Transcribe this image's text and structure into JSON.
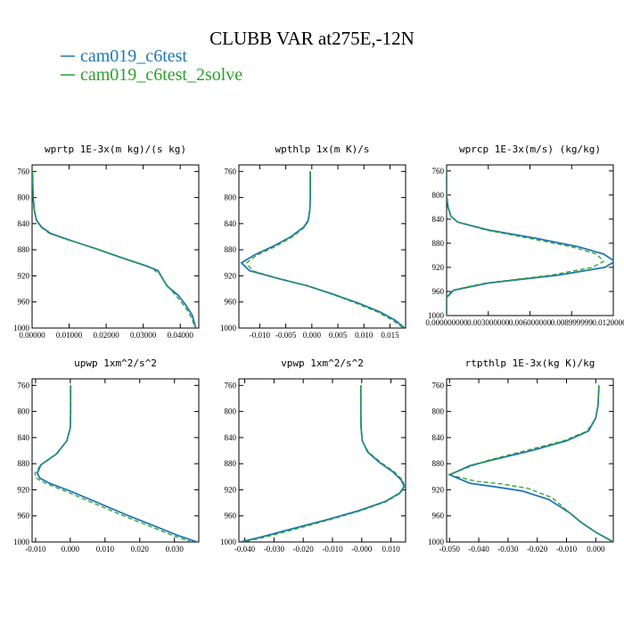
{
  "chart_data": {
    "type": "line",
    "title": "CLUBB VAR at275E,-12N",
    "y_axis": "pressure (inverted)",
    "ylim": [
      1000,
      750
    ],
    "y_ticks": [
      760,
      800,
      840,
      880,
      920,
      960,
      1000
    ],
    "legend": {
      "placement": "top-left",
      "entries": [
        {
          "name": "cam019_c6test",
          "color": "#1f77b4",
          "style": "solid"
        },
        {
          "name": "cam019_c6test_2solve",
          "color": "#2ca02c",
          "style": "dashed"
        }
      ]
    },
    "panels": [
      {
        "title": "wprtp  1E-3x(m kg)/(s kg)",
        "xlim": [
          0,
          0.045
        ],
        "x_ticks": [
          0,
          0.01,
          0.02,
          0.03,
          0.04
        ],
        "x_tick_labels": [
          "0.00000",
          "0.01000",
          "0.02000",
          "0.03000",
          "0.04000"
        ],
        "series": [
          {
            "name": "cam019_c6test",
            "x": [
              0.0001,
              0.0003,
              0.0006,
              0.0012,
              0.0025,
              0.005,
              0.01,
              0.017,
              0.024,
              0.031,
              0.034,
              0.035,
              0.0365,
              0.0395,
              0.0415,
              0.0432,
              0.0442
            ],
            "y": [
              760,
              800,
              820,
              835,
              845,
              855,
              865,
              878,
              892,
              905,
              912,
              922,
              936,
              950,
              965,
              980,
              1000
            ]
          },
          {
            "name": "cam019_c6test_2solve",
            "x": [
              0.0001,
              0.0003,
              0.0006,
              0.0012,
              0.0023,
              0.0047,
              0.0098,
              0.0172,
              0.0248,
              0.0325,
              0.0345,
              0.0358,
              0.038,
              0.04,
              0.0418,
              0.0432,
              0.044
            ],
            "y": [
              760,
              800,
              820,
              835,
              845,
              855,
              865,
              878,
              893,
              909,
              918,
              930,
              945,
              958,
              972,
              986,
              1000
            ]
          }
        ]
      },
      {
        "title": "wpthlp  1x(m K)/s",
        "xlim": [
          -0.014,
          0.018
        ],
        "x_ticks": [
          -0.01,
          -0.005,
          0,
          0.005,
          0.01,
          0.015
        ],
        "x_tick_labels": [
          "-0.010",
          "-0.005",
          "0.000",
          "0.005",
          "0.010",
          "0.015"
        ],
        "series": [
          {
            "name": "cam019_c6test",
            "x": [
              -0.0003,
              -0.0003,
              -0.0004,
              -0.0007,
              -0.0015,
              -0.004,
              -0.0075,
              -0.011,
              -0.0135,
              -0.012,
              -0.006,
              -0.001,
              0.004,
              0.009,
              0.013,
              0.016,
              0.0178
            ],
            "y": [
              760,
              800,
              820,
              835,
              845,
              860,
              875,
              888,
              900,
              912,
              925,
              935,
              948,
              962,
              975,
              988,
              1000
            ]
          },
          {
            "name": "cam019_c6test_2solve",
            "x": [
              -0.0003,
              -0.0003,
              -0.0004,
              -0.0006,
              -0.0013,
              -0.0037,
              -0.007,
              -0.0105,
              -0.0125,
              -0.0115,
              -0.006,
              -0.001,
              0.0038,
              0.0085,
              0.0125,
              0.0155,
              0.0176
            ],
            "y": [
              760,
              800,
              820,
              835,
              845,
              860,
              875,
              888,
              900,
              912,
              925,
              935,
              948,
              962,
              975,
              988,
              1000
            ]
          }
        ]
      },
      {
        "title": "wprcp  1E-3x(m/s) (kg/kg)",
        "xlim": [
          0,
          0.012
        ],
        "x_ticks": [
          0,
          0.003,
          0.006,
          0.009,
          0.012
        ],
        "x_tick_labels": [
          "0.000000000",
          "0.003000000",
          "0.006000000",
          "0.008999999",
          "0.012000000"
        ],
        "series": [
          {
            "name": "cam019_c6test",
            "x": [
              0,
              0,
              0.0001,
              0.0003,
              0.0008,
              0.003,
              0.0065,
              0.0095,
              0.0113,
              0.0121,
              0.0114,
              0.008,
              0.003,
              0.0005,
              0,
              0,
              0
            ],
            "y": [
              760,
              800,
              820,
              835,
              845,
              858,
              872,
              886,
              898,
              910,
              920,
              933,
              946,
              958,
              970,
              985,
              1000
            ]
          },
          {
            "name": "cam019_c6test_2solve",
            "x": [
              0,
              0,
              0.0001,
              0.0003,
              0.0008,
              0.0028,
              0.006,
              0.009,
              0.0108,
              0.0113,
              0.0105,
              0.0075,
              0.0028,
              0.0004,
              0,
              0,
              0
            ],
            "y": [
              760,
              800,
              820,
              835,
              845,
              858,
              872,
              886,
              898,
              910,
              920,
              933,
              946,
              958,
              970,
              985,
              1000
            ]
          }
        ]
      },
      {
        "title": "upwp  1xm^2/s^2",
        "xlim": [
          -0.011,
          0.037
        ],
        "x_ticks": [
          -0.01,
          0,
          0.01,
          0.02,
          0.03
        ],
        "x_tick_labels": [
          "-0.010",
          "0.000",
          "0.010",
          "0.020",
          "0.030"
        ],
        "series": [
          {
            "name": "cam019_c6test",
            "x": [
              0.0001,
              0.0001,
              0.0,
              -0.001,
              -0.004,
              -0.0085,
              -0.0095,
              -0.0088,
              -0.006,
              0.0,
              0.008,
              0.016,
              0.024,
              0.031,
              0.0365
            ],
            "y": [
              760,
              800,
              825,
              845,
              865,
              882,
              895,
              902,
              910,
              922,
              940,
              958,
              975,
              990,
              1000
            ]
          },
          {
            "name": "cam019_c6test_2solve",
            "x": [
              0.0001,
              0.0001,
              0.0,
              -0.001,
              -0.004,
              -0.0085,
              -0.0102,
              -0.0098,
              -0.0072,
              -0.0015,
              0.0065,
              0.0145,
              0.0225,
              0.0295,
              0.035
            ],
            "y": [
              760,
              800,
              825,
              845,
              865,
              882,
              895,
              902,
              910,
              922,
              940,
              958,
              975,
              990,
              1000
            ]
          }
        ]
      },
      {
        "title": "vpwp  1xm^2/s^2",
        "xlim": [
          -0.042,
          0.015
        ],
        "x_ticks": [
          -0.04,
          -0.03,
          -0.02,
          -0.01,
          0.0,
          0.01
        ],
        "x_tick_labels": [
          "-0.040",
          "-0.030",
          "-0.020",
          "-0.010",
          "-0.000",
          "0.010"
        ],
        "series": [
          {
            "name": "cam019_c6test",
            "x": [
              -0.0003,
              -0.0003,
              -0.0002,
              0.0002,
              0.002,
              0.006,
              0.0105,
              0.0135,
              0.0145,
              0.013,
              0.008,
              -0.001,
              -0.012,
              -0.024,
              -0.034,
              -0.0415
            ],
            "y": [
              760,
              800,
              825,
              845,
              862,
              878,
              892,
              905,
              915,
              925,
              938,
              952,
              966,
              980,
              992,
              1000
            ]
          },
          {
            "name": "cam019_c6test_2solve",
            "x": [
              -0.0003,
              -0.0003,
              -0.0002,
              0.0002,
              0.0023,
              0.0065,
              0.011,
              0.014,
              0.0147,
              0.0133,
              0.0085,
              -0.0003,
              -0.011,
              -0.0225,
              -0.0325,
              -0.0405
            ],
            "y": [
              760,
              800,
              825,
              845,
              862,
              878,
              892,
              905,
              915,
              925,
              938,
              952,
              966,
              980,
              992,
              1000
            ]
          }
        ]
      },
      {
        "title": "rtpthlp  1E-3x(kg K)/kg",
        "xlim": [
          -0.051,
          0.006
        ],
        "x_ticks": [
          -0.05,
          -0.04,
          -0.03,
          -0.02,
          -0.01,
          0.0
        ],
        "x_tick_labels": [
          "-0.050",
          "-0.040",
          "-0.030",
          "-0.020",
          "-0.010",
          "0.000"
        ],
        "series": [
          {
            "name": "cam019_c6test",
            "x": [
              0.0011,
              0.0008,
              0.0,
              -0.0025,
              -0.01,
              -0.022,
              -0.036,
              -0.043,
              -0.05,
              -0.043,
              -0.035,
              -0.025,
              -0.016,
              -0.009,
              -0.005,
              0.0,
              0.004,
              0.006
            ],
            "y": [
              760,
              790,
              810,
              830,
              845,
              860,
              875,
              883,
              897,
              910,
              915,
              922,
              935,
              955,
              970,
              985,
              995,
              1000
            ]
          },
          {
            "name": "cam019_c6test_2solve",
            "x": [
              0.0011,
              0.0008,
              0.0,
              -0.003,
              -0.011,
              -0.024,
              -0.037,
              -0.044,
              -0.05,
              -0.041,
              -0.032,
              -0.023,
              -0.015,
              -0.009,
              -0.005,
              0.0,
              0.004,
              0.006
            ],
            "y": [
              760,
              790,
              810,
              830,
              845,
              860,
              875,
              886,
              897,
              907,
              911,
              918,
              932,
              955,
              970,
              985,
              995,
              1000
            ]
          }
        ]
      }
    ]
  }
}
